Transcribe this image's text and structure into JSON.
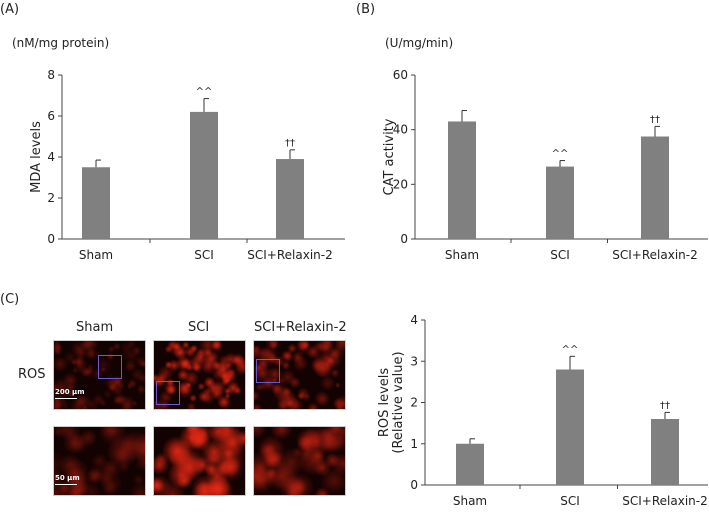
{
  "panels": {
    "a": "(A)",
    "b": "(B)",
    "c": "(C)"
  },
  "colors": {
    "bar": "#808080",
    "axis": "#444444",
    "fluor": "#e02010",
    "roi": "#6a5acd"
  },
  "micro": {
    "row_label": "ROS",
    "columns": [
      "Sham",
      "SCI",
      "SCI+Relaxin-2"
    ],
    "scale_top": "200 μm",
    "scale_bottom": "50 μm",
    "intensity": [
      0.35,
      0.95,
      0.6
    ]
  },
  "chart_data": [
    {
      "type": "bar",
      "id": "A",
      "unit": "(nM/mg protein)",
      "ylabel": "MDA levels",
      "categories": [
        "Sham",
        "SCI",
        "SCI+Relaxin-2"
      ],
      "values": [
        3.5,
        6.2,
        3.9
      ],
      "errors": [
        0.35,
        0.65,
        0.45
      ],
      "annotations": [
        "",
        "^^",
        "††"
      ],
      "ylim": [
        0,
        8
      ],
      "yticks": [
        0,
        2,
        4,
        6,
        8
      ],
      "grid": false
    },
    {
      "type": "bar",
      "id": "B",
      "unit": "(U/mg/min)",
      "ylabel": "CAT activity",
      "categories": [
        "Sham",
        "SCI",
        "SCI+Relaxin-2"
      ],
      "values": [
        43,
        26.5,
        37.5
      ],
      "errors": [
        4,
        2.2,
        3.7
      ],
      "annotations": [
        "",
        "^^",
        "††"
      ],
      "ylim": [
        0,
        60
      ],
      "yticks": [
        0,
        20,
        40,
        60
      ],
      "grid": false
    },
    {
      "type": "bar",
      "id": "C",
      "unit": "",
      "ylabel": "ROS levels",
      "ylabel2": "(Relative value)",
      "categories": [
        "Sham",
        "SCI",
        "SCI+Relaxin-2"
      ],
      "values": [
        1.0,
        2.8,
        1.6
      ],
      "errors": [
        0.12,
        0.32,
        0.16
      ],
      "annotations": [
        "",
        "^^",
        "††"
      ],
      "ylim": [
        0,
        4
      ],
      "yticks": [
        0,
        1,
        2,
        3,
        4
      ],
      "grid": false
    }
  ]
}
